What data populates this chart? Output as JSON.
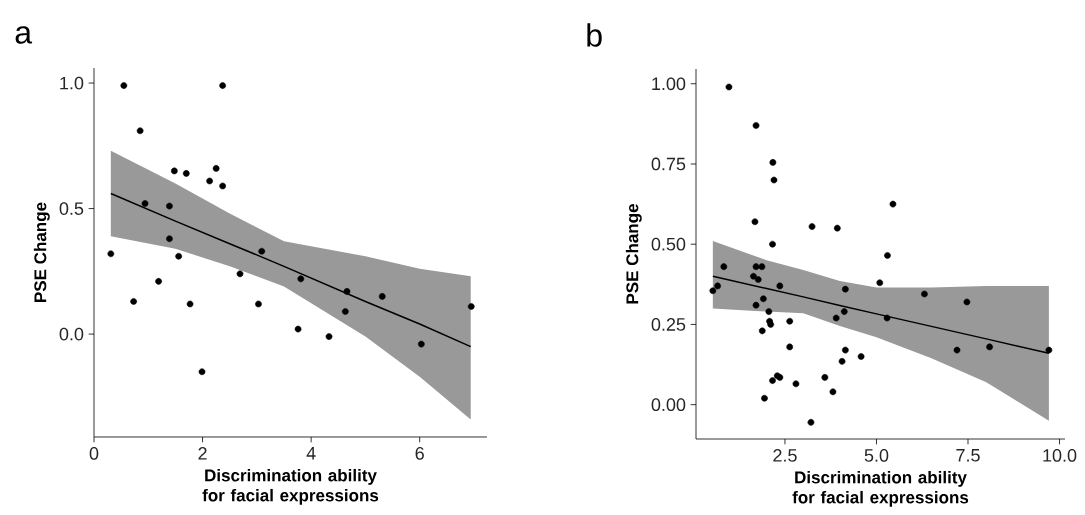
{
  "chart_data": [
    {
      "type": "scatter",
      "annotations": [
        "a"
      ],
      "xlabel": "Discrimination ability for facial expressions",
      "ylabel": "PSE Change",
      "xlim": [
        0,
        7.24
      ],
      "ylim": [
        -0.41,
        1.06
      ],
      "xticks": [
        0,
        2,
        4,
        6
      ],
      "yticks": [
        {
          "value": 0,
          "label": "0.0"
        },
        {
          "value": 0.5,
          "label": "0.5"
        },
        {
          "value": 1,
          "label": "1.0"
        }
      ],
      "grid": false,
      "marker": "circle",
      "series": [
        {
          "type": "line",
          "color": "#000000",
          "marker": "none",
          "x": [
            0.31,
            1.5,
            2.5,
            3.5,
            5,
            6,
            6.94
          ],
          "values": [
            0.56,
            0.45,
            0.36,
            0.27,
            0.13,
            0.04,
            -0.05
          ],
          "lower": [
            0.39,
            0.34,
            0.27,
            0.19,
            -0.01,
            -0.17,
            -0.34
          ],
          "upper": [
            0.73,
            0.6,
            0.48,
            0.37,
            0.31,
            0.26,
            0.23
          ]
        },
        {
          "type": "scatter",
          "color": "#000000",
          "x": [
            0.31,
            0.55,
            0.73,
            0.85,
            0.94,
            1.19,
            1.39,
            1.39,
            1.48,
            1.56,
            1.7,
            1.77,
            1.99,
            2.13,
            2.25,
            2.37,
            2.37,
            2.69,
            3.03,
            3.09,
            3.76,
            3.81,
            4.33,
            4.63,
            4.66,
            5.31,
            6.03,
            6.95
          ],
          "values": [
            0.32,
            0.99,
            0.13,
            0.81,
            0.52,
            0.21,
            0.51,
            0.38,
            0.65,
            0.31,
            0.64,
            0.12,
            -0.15,
            0.61,
            0.66,
            0.99,
            0.59,
            0.24,
            0.12,
            0.33,
            0.02,
            0.22,
            -0.01,
            0.09,
            0.17,
            0.15,
            -0.04,
            0.11
          ]
        }
      ]
    },
    {
      "type": "scatter",
      "annotations": [
        "b"
      ],
      "xlabel": "Discrimination ability for facial expressions",
      "ylabel": "PSE Change",
      "xlim": [
        0.07,
        10.15
      ],
      "ylim": [
        -0.107,
        1.046
      ],
      "xticks": [
        {
          "value": 2.5,
          "label": "2.5"
        },
        {
          "value": 5,
          "label": "5.0"
        },
        {
          "value": 7.5,
          "label": "7.5"
        },
        {
          "value": 10,
          "label": "10.0"
        }
      ],
      "yticks": [
        {
          "value": 0,
          "label": "0.00"
        },
        {
          "value": 0.25,
          "label": "0.25"
        },
        {
          "value": 0.5,
          "label": "0.50"
        },
        {
          "value": 0.75,
          "label": "0.75"
        },
        {
          "value": 1,
          "label": "1.00"
        }
      ],
      "grid": false,
      "marker": "circle",
      "series": [
        {
          "type": "line",
          "color": "#000000",
          "marker": "none",
          "x": [
            0.53,
            2,
            3,
            4,
            5,
            6.5,
            8,
            9.71
          ],
          "values": [
            0.4,
            0.362,
            0.336,
            0.309,
            0.283,
            0.244,
            0.205,
            0.16
          ],
          "lower": [
            0.3,
            0.29,
            0.285,
            0.245,
            0.21,
            0.145,
            0.07,
            -0.05
          ],
          "upper": [
            0.51,
            0.45,
            0.42,
            0.385,
            0.365,
            0.365,
            0.37,
            0.37
          ]
        },
        {
          "type": "scatter",
          "color": "#000000",
          "x": [
            0.53,
            0.66,
            0.83,
            0.97,
            1.71,
            1.68,
            1.64,
            1.71,
            1.77,
            1.87,
            1.71,
            1.91,
            1.88,
            1.94,
            2.06,
            2.08,
            2.11,
            2.16,
            2.17,
            2.2,
            2.16,
            2.29,
            2.36,
            2.36,
            2.63,
            2.63,
            2.8,
            3.24,
            3.21,
            3.59,
            3.81,
            3.9,
            3.93,
            4.06,
            4.12,
            4.15,
            4.15,
            4.58,
            5.09,
            5.29,
            5.3,
            5.45,
            6.31,
            7.2,
            7.47,
            8.09,
            9.71
          ],
          "values": [
            0.355,
            0.37,
            0.43,
            0.99,
            0.87,
            0.57,
            0.4,
            0.43,
            0.39,
            0.43,
            0.31,
            0.33,
            0.23,
            0.02,
            0.29,
            0.26,
            0.25,
            0.5,
            0.755,
            0.7,
            0.075,
            0.09,
            0.085,
            0.37,
            0.26,
            0.18,
            0.065,
            0.555,
            -0.055,
            0.085,
            0.04,
            0.27,
            0.55,
            0.135,
            0.29,
            0.36,
            0.17,
            0.15,
            0.38,
            0.27,
            0.465,
            0.625,
            0.345,
            0.17,
            0.32,
            0.18,
            0.17
          ]
        }
      ]
    }
  ]
}
